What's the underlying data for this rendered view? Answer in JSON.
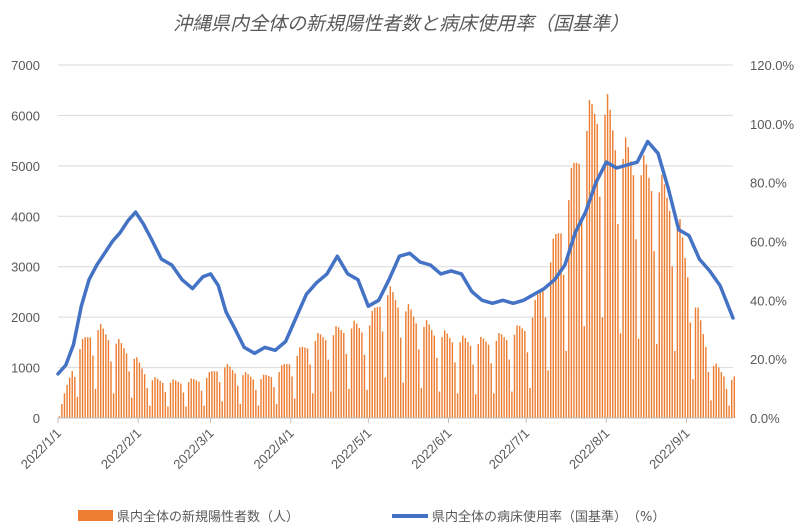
{
  "chart_data": {
    "type": "bar+line",
    "title": "沖縄県内全体の新規陽性者数と病床使用率（国基準）",
    "x_start": "2022/1/1",
    "x_end": "2022/9/19",
    "x_tick_labels": [
      "2022/1/1",
      "2022/2/1",
      "2022/3/1",
      "2022/4/1",
      "2022/5/1",
      "2022/6/1",
      "2022/7/1",
      "2022/8/1",
      "2022/9/1"
    ],
    "x_tick_dates": [
      "2022-01-01",
      "2022-02-01",
      "2022-03-01",
      "2022-04-01",
      "2022-05-01",
      "2022-06-01",
      "2022-07-01",
      "2022-08-01",
      "2022-09-01"
    ],
    "y_left": {
      "ylim": [
        0,
        7000
      ],
      "ticks": [
        0,
        1000,
        2000,
        3000,
        4000,
        5000,
        6000,
        7000
      ],
      "tick_labels": [
        "0",
        "1000",
        "2000",
        "3000",
        "4000",
        "5000",
        "6000",
        "7000"
      ]
    },
    "y_right": {
      "ylim": [
        0,
        120
      ],
      "ticks": [
        0,
        20,
        40,
        60,
        80,
        100,
        120
      ],
      "tick_labels": [
        "0.0%",
        "20.0%",
        "40.0%",
        "60.0%",
        "80.0%",
        "100.0%",
        "120.0%"
      ]
    },
    "grid": true,
    "legend_position": "bottom",
    "series": [
      {
        "name": "県内全体の新規陽性者数（人）",
        "kind": "bar",
        "axis": "left",
        "color": "#ED7D31",
        "x": [
          "2022-01-01",
          "2022-01-08",
          "2022-01-15",
          "2022-01-22",
          "2022-01-29",
          "2022-02-05",
          "2022-02-12",
          "2022-02-19",
          "2022-02-26",
          "2022-03-05",
          "2022-03-12",
          "2022-03-19",
          "2022-03-26",
          "2022-04-02",
          "2022-04-09",
          "2022-04-16",
          "2022-04-23",
          "2022-04-30",
          "2022-05-07",
          "2022-05-14",
          "2022-05-21",
          "2022-05-28",
          "2022-06-04",
          "2022-06-11",
          "2022-06-18",
          "2022-06-25",
          "2022-07-02",
          "2022-07-09",
          "2022-07-16",
          "2022-07-23",
          "2022-07-30",
          "2022-08-06",
          "2022-08-13",
          "2022-08-20",
          "2022-08-27",
          "2022-09-03",
          "2022-09-10",
          "2022-09-17"
        ],
        "values": [
          100,
          1200,
          1650,
          1400,
          1150,
          700,
          650,
          650,
          700,
          950,
          800,
          700,
          800,
          1100,
          1400,
          1500,
          1650,
          1600,
          2300,
          2000,
          1700,
          1500,
          1400,
          1350,
          1400,
          1500,
          1700,
          2700,
          3800,
          5200,
          5700,
          4800,
          4500,
          4200,
          3800,
          2200,
          1000,
          700
        ]
      },
      {
        "name": "県内全体の病床使用率（国基準）　（%）",
        "kind": "line",
        "axis": "right",
        "color": "#4472C4",
        "x": [
          "2022-01-01",
          "2022-01-04",
          "2022-01-07",
          "2022-01-10",
          "2022-01-13",
          "2022-01-16",
          "2022-01-19",
          "2022-01-22",
          "2022-01-25",
          "2022-01-28",
          "2022-01-31",
          "2022-02-03",
          "2022-02-06",
          "2022-02-10",
          "2022-02-14",
          "2022-02-18",
          "2022-02-22",
          "2022-02-26",
          "2022-03-01",
          "2022-03-04",
          "2022-03-07",
          "2022-03-10",
          "2022-03-14",
          "2022-03-18",
          "2022-03-22",
          "2022-03-26",
          "2022-03-30",
          "2022-04-03",
          "2022-04-07",
          "2022-04-11",
          "2022-04-15",
          "2022-04-19",
          "2022-04-23",
          "2022-04-27",
          "2022-05-01",
          "2022-05-05",
          "2022-05-09",
          "2022-05-13",
          "2022-05-17",
          "2022-05-21",
          "2022-05-25",
          "2022-05-29",
          "2022-06-02",
          "2022-06-06",
          "2022-06-10",
          "2022-06-14",
          "2022-06-18",
          "2022-06-22",
          "2022-06-26",
          "2022-06-30",
          "2022-07-04",
          "2022-07-08",
          "2022-07-12",
          "2022-07-16",
          "2022-07-20",
          "2022-07-24",
          "2022-07-28",
          "2022-08-01",
          "2022-08-05",
          "2022-08-09",
          "2022-08-13",
          "2022-08-17",
          "2022-08-21",
          "2022-08-25",
          "2022-08-29",
          "2022-09-02",
          "2022-09-06",
          "2022-09-10",
          "2022-09-14",
          "2022-09-19"
        ],
        "values": [
          15,
          18,
          25,
          38,
          47,
          52,
          56,
          60,
          63,
          67,
          70,
          66,
          61,
          54,
          52,
          47,
          44,
          48,
          49,
          45,
          36,
          31,
          24,
          22,
          24,
          23,
          26,
          34,
          42,
          46,
          49,
          55,
          49,
          47,
          38,
          40,
          47,
          55,
          56,
          53,
          52,
          49,
          50,
          49,
          43,
          40,
          39,
          40,
          39,
          40,
          42,
          44,
          47,
          52,
          63,
          70,
          80,
          87,
          85,
          86,
          87,
          94,
          90,
          78,
          64,
          62,
          54,
          50,
          45,
          34
        ]
      }
    ]
  }
}
